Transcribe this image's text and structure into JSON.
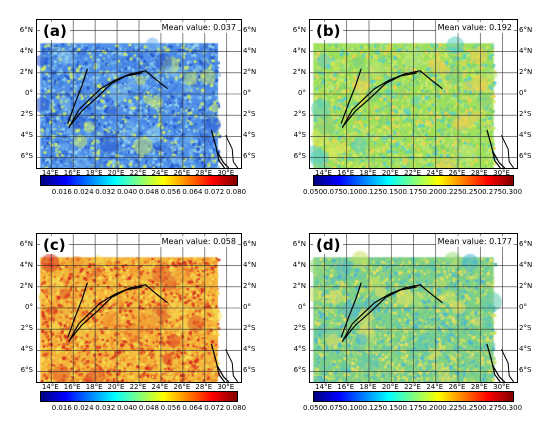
{
  "panels": [
    {
      "id": "a",
      "tag": "(a)",
      "mean_label": "Mean value: 0.037",
      "base_color": "#4f8fe8",
      "noise_colors": [
        "#2a5ad0",
        "#3f7fe0",
        "#6fb0f0",
        "#8fd0f0",
        "#c8e870"
      ],
      "colorbar": {
        "min": 0.008,
        "max": 0.08,
        "ticks": [
          "0.016",
          "0.024",
          "0.032",
          "0.040",
          "0.048",
          "0.056",
          "0.064",
          "0.072",
          "0.080"
        ],
        "tick_values": [
          0.016,
          0.024,
          0.032,
          0.04,
          0.048,
          0.056,
          0.064,
          0.072,
          0.08
        ]
      }
    },
    {
      "id": "b",
      "tag": "(b)",
      "mean_label": "Mean value: 0.192",
      "base_color": "#9de05a",
      "noise_colors": [
        "#d6e85a",
        "#7fd07a",
        "#5ad0c8",
        "#f0d050",
        "#b8e878"
      ],
      "colorbar": {
        "min": 0.05,
        "max": 0.3,
        "ticks": [
          "0.050",
          "0.075",
          "0.100",
          "0.125",
          "0.150",
          "0.175",
          "0.200",
          "0.225",
          "0.250",
          "0.275",
          "0.300"
        ],
        "tick_values": [
          0.05,
          0.075,
          0.1,
          0.125,
          0.15,
          0.175,
          0.2,
          0.225,
          0.25,
          0.275,
          0.3
        ]
      }
    },
    {
      "id": "c",
      "tag": "(c)",
      "mean_label": "Mean value: 0.058",
      "base_color": "#f5b43a",
      "noise_colors": [
        "#f0d048",
        "#f29030",
        "#e05a28",
        "#d83020",
        "#f8e050"
      ],
      "colorbar": {
        "min": 0.008,
        "max": 0.08,
        "ticks": [
          "0.016",
          "0.024",
          "0.032",
          "0.040",
          "0.048",
          "0.056",
          "0.064",
          "0.072",
          "0.080"
        ],
        "tick_values": [
          0.016,
          0.024,
          0.032,
          0.04,
          0.048,
          0.056,
          0.064,
          0.072,
          0.08
        ]
      }
    },
    {
      "id": "d",
      "tag": "(d)",
      "mean_label": "Mean value: 0.177",
      "base_color": "#7dd088",
      "noise_colors": [
        "#5fc8b0",
        "#9ddc78",
        "#c8e060",
        "#4fb8d0",
        "#e8e060"
      ],
      "colorbar": {
        "min": 0.05,
        "max": 0.3,
        "ticks": [
          "0.050",
          "0.075",
          "0.100",
          "0.125",
          "0.150",
          "0.175",
          "0.200",
          "0.225",
          "0.250",
          "0.275",
          "0.300"
        ],
        "tick_values": [
          0.05,
          0.075,
          0.1,
          0.125,
          0.15,
          0.175,
          0.2,
          0.225,
          0.25,
          0.275,
          0.3
        ]
      }
    }
  ],
  "lat_labels": [
    "6°N",
    "4°N",
    "2°N",
    "0°",
    "2°S",
    "4°S",
    "6°S"
  ],
  "lat_values": [
    6,
    4,
    2,
    0,
    -2,
    -4,
    -6
  ],
  "lon_labels": [
    "14°E",
    "16°E",
    "18°E",
    "20°E",
    "22°E",
    "24°E",
    "26°E",
    "28°E",
    "30°E"
  ],
  "lon_values": [
    14,
    16,
    18,
    20,
    22,
    24,
    26,
    28,
    30
  ],
  "map_extent": {
    "lon_min": 12.7,
    "lon_max": 31.3,
    "lat_min": -7.0,
    "lat_max": 7.0
  },
  "data_extent": {
    "lon_min": 13.0,
    "lon_max": 29.2,
    "lat_min": -7.0,
    "lat_max": 4.8
  },
  "colormap": [
    "#00007f",
    "#0000ff",
    "#007fff",
    "#00ffff",
    "#7fff7f",
    "#ffff00",
    "#ff7f00",
    "#ff0000",
    "#7f0000"
  ],
  "river_lonlat": [
    [
      [
        15.5,
        -2.8
      ],
      [
        16.2,
        -0.8
      ],
      [
        16.8,
        0.8
      ],
      [
        17.3,
        2.4
      ]
    ],
    [
      [
        15.6,
        -3.2
      ],
      [
        16.5,
        -1.5
      ],
      [
        17.8,
        -0.2
      ],
      [
        18.5,
        0.5
      ],
      [
        19.8,
        1.3
      ],
      [
        21.2,
        1.9
      ],
      [
        22.6,
        2.2
      ],
      [
        23.5,
        1.4
      ],
      [
        24.6,
        0.5
      ]
    ],
    [
      [
        15.7,
        -3.0
      ],
      [
        16.8,
        -1.6
      ],
      [
        18.1,
        -0.4
      ],
      [
        19.5,
        1.0
      ],
      [
        20.8,
        1.7
      ],
      [
        22.3,
        2.0
      ]
    ],
    [
      [
        28.6,
        -3.4
      ],
      [
        29.0,
        -4.9
      ],
      [
        29.3,
        -6.3
      ],
      [
        29.8,
        -7.0
      ]
    ],
    [
      [
        29.1,
        -5.4
      ],
      [
        29.7,
        -6.5
      ],
      [
        30.2,
        -7.0
      ]
    ]
  ],
  "coast_lonlat": [
    [
      29.9,
      -3.9
    ],
    [
      30.5,
      -5.2
    ],
    [
      30.6,
      -6.4
    ],
    [
      31.0,
      -7.0
    ]
  ]
}
